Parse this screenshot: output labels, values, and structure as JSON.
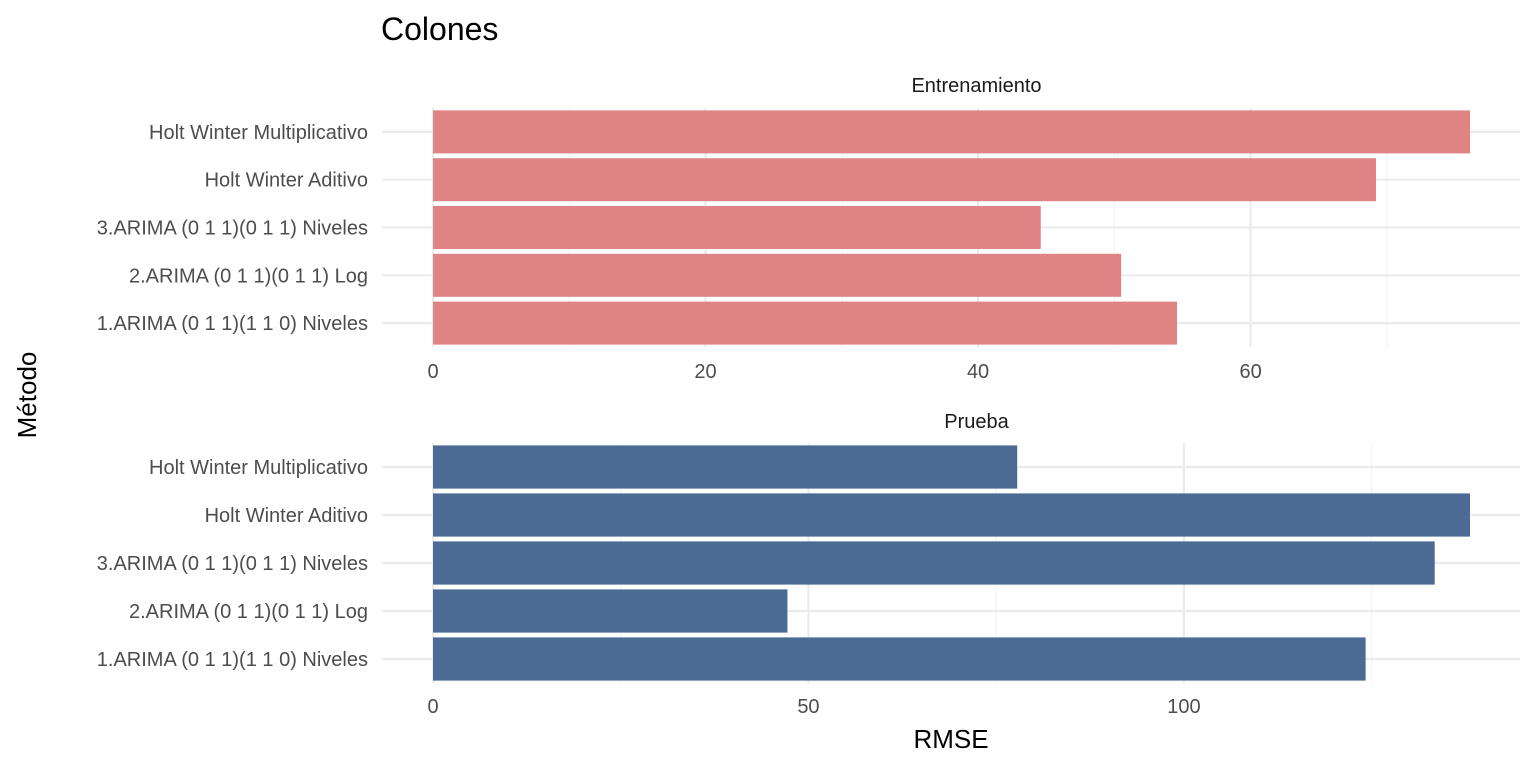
{
  "chart_data": {
    "type": "bar",
    "orientation": "horizontal",
    "title": "Colones",
    "xlabel": "RMSE",
    "ylabel": "Método",
    "grid": true,
    "legend": "none",
    "categories": [
      "1.ARIMA (0 1 1)(1 1 0) Niveles",
      "2.ARIMA (0 1 1)(0 1 1) Log",
      "3.ARIMA (0 1 1)(0 1 1) Niveles",
      "Holt Winter Aditivo",
      "Holt Winter Multiplicativo"
    ],
    "panels": [
      {
        "label": "Entrenamiento",
        "color": "#df8385",
        "values": [
          54.6,
          50.5,
          44.6,
          69.2,
          76.1
        ],
        "xlim": [
          0,
          76.1
        ],
        "ticks": [
          0,
          20,
          40,
          60
        ],
        "tick_labels": [
          "0",
          "20",
          "40",
          "60"
        ]
      },
      {
        "label": "Prueba",
        "color": "#4b6a94",
        "values": [
          124.2,
          47.2,
          133.4,
          138.1,
          77.8
        ],
        "xlim": [
          0,
          138.1
        ],
        "ticks": [
          0,
          50,
          100
        ],
        "tick_labels": [
          "0",
          "50",
          "100"
        ]
      }
    ]
  }
}
